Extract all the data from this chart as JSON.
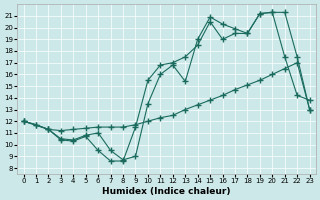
{
  "xlabel": "Humidex (Indice chaleur)",
  "xlim": [
    -0.5,
    23.5
  ],
  "ylim": [
    7.5,
    22
  ],
  "yticks": [
    8,
    9,
    10,
    11,
    12,
    13,
    14,
    15,
    16,
    17,
    18,
    19,
    20,
    21
  ],
  "xticks": [
    0,
    1,
    2,
    3,
    4,
    5,
    6,
    7,
    8,
    9,
    10,
    11,
    12,
    13,
    14,
    15,
    16,
    17,
    18,
    19,
    20,
    21,
    22,
    23
  ],
  "bg_color": "#cde8e8",
  "line_color": "#1a6b5e",
  "line1_x": [
    0,
    1,
    2,
    3,
    4,
    5,
    6,
    7,
    8,
    9,
    10,
    11,
    12,
    13,
    14,
    15,
    16,
    17,
    18,
    19,
    20,
    21,
    22,
    23
  ],
  "line1_y": [
    12.0,
    11.7,
    11.3,
    11.2,
    11.3,
    11.4,
    11.5,
    11.5,
    11.5,
    11.7,
    12.0,
    12.3,
    12.5,
    13.0,
    13.4,
    13.8,
    14.2,
    14.7,
    15.1,
    15.5,
    16.0,
    16.5,
    17.0,
    13.0
  ],
  "line2_x": [
    0,
    1,
    2,
    3,
    4,
    5,
    6,
    7,
    8,
    9,
    10,
    11,
    12,
    13,
    14,
    15,
    16,
    17,
    18,
    19,
    20,
    21,
    22,
    23
  ],
  "line2_y": [
    12.0,
    11.7,
    11.3,
    10.4,
    10.3,
    10.7,
    9.5,
    8.6,
    8.6,
    11.5,
    15.5,
    16.8,
    17.0,
    17.5,
    18.5,
    20.5,
    19.0,
    19.5,
    19.5,
    21.2,
    21.3,
    17.5,
    14.2,
    13.8
  ],
  "line3_x": [
    0,
    2,
    3,
    4,
    5,
    6,
    7,
    8,
    9,
    10,
    11,
    12,
    13,
    14,
    15,
    16,
    17,
    18,
    19,
    20,
    21,
    22,
    23
  ],
  "line3_y": [
    12.0,
    11.3,
    10.5,
    10.4,
    10.8,
    11.0,
    9.5,
    8.7,
    9.0,
    13.5,
    16.0,
    16.8,
    15.4,
    19.0,
    20.9,
    20.3,
    19.9,
    19.5,
    21.2,
    21.3,
    21.3,
    17.5,
    13.0
  ]
}
